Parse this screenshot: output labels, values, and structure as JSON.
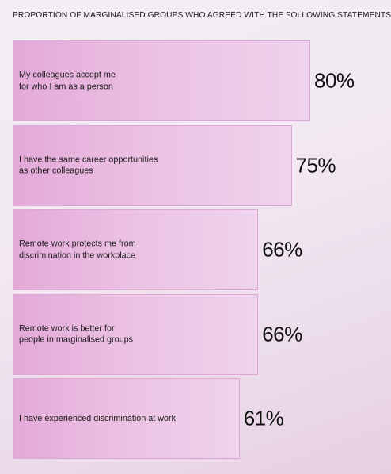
{
  "chart_data": {
    "type": "bar",
    "orientation": "horizontal",
    "title": "PROPORTION OF MARGINALISED GROUPS WHO AGREED WITH THE FOLLOWING STATEMENTS",
    "categories": [
      "My colleagues accept me\nfor who I am as a person",
      "I have the same career opportunities\nas other colleagues",
      "Remote work protects me from\ndiscrimination in the workplace",
      "Remote work is better for\npeople in marginalised groups",
      "I have experienced discrimination at work"
    ],
    "values": [
      80,
      75,
      66,
      66,
      61
    ],
    "value_labels": [
      "80%",
      "75%",
      "66%",
      "66%",
      "61%"
    ],
    "unit": "%",
    "xlim": [
      0,
      100
    ],
    "grid": false,
    "legend": "none",
    "colors": {
      "bar_start": "#e3a9d8",
      "bar_end": "#efd3ec",
      "bar_border": "#dca7d4",
      "background": "#f1e8f1"
    }
  }
}
